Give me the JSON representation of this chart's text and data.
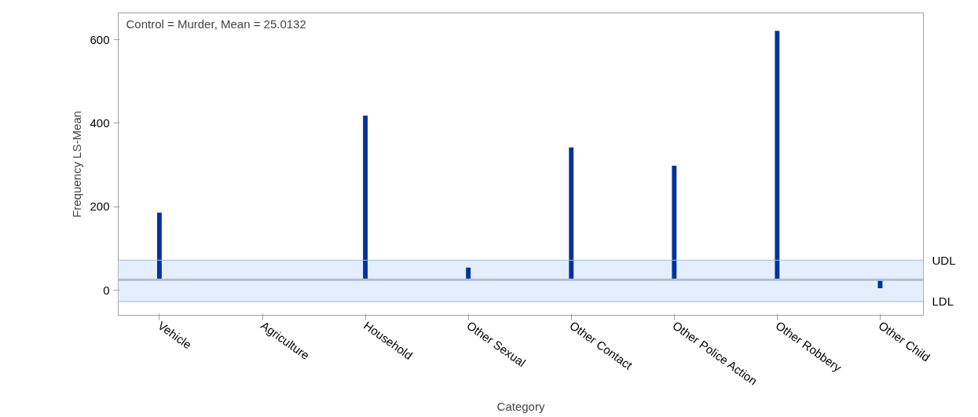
{
  "chart_data": {
    "type": "bar",
    "xlabel": "Category",
    "ylabel": "Frequency LS-Mean",
    "categories": [
      "Vehicle",
      "Agriculture",
      "Household",
      "Other Sexual",
      "Other Contact",
      "Other Police Action",
      "Other Robbery",
      "Other Child"
    ],
    "values": [
      161,
      null,
      393,
      29,
      317,
      273,
      596,
      -20
    ],
    "base": [
      25.0132,
      null,
      25.0132,
      25.0132,
      25.0132,
      25.0132,
      25.0132,
      25.0132
    ],
    "color": "#003399",
    "ylim": [
      -60,
      664
    ],
    "yticks": [
      0,
      200,
      400,
      600
    ],
    "grid": false,
    "annotations": [
      "Control = Murder, Mean = 25.0132"
    ],
    "ref_lines": [
      {
        "axis": "y",
        "value": 25.0132,
        "label": null,
        "color": "#b4bccc"
      },
      {
        "axis": "y",
        "value": 72,
        "label": "UDL",
        "color": "#a9bde0"
      },
      {
        "axis": "y",
        "value": -27,
        "label": "LDL",
        "color": "#a9bde0"
      }
    ],
    "bands": [
      {
        "axis": "y",
        "from": -27,
        "to": 72,
        "label": null,
        "color": "#e3efff"
      }
    ]
  }
}
